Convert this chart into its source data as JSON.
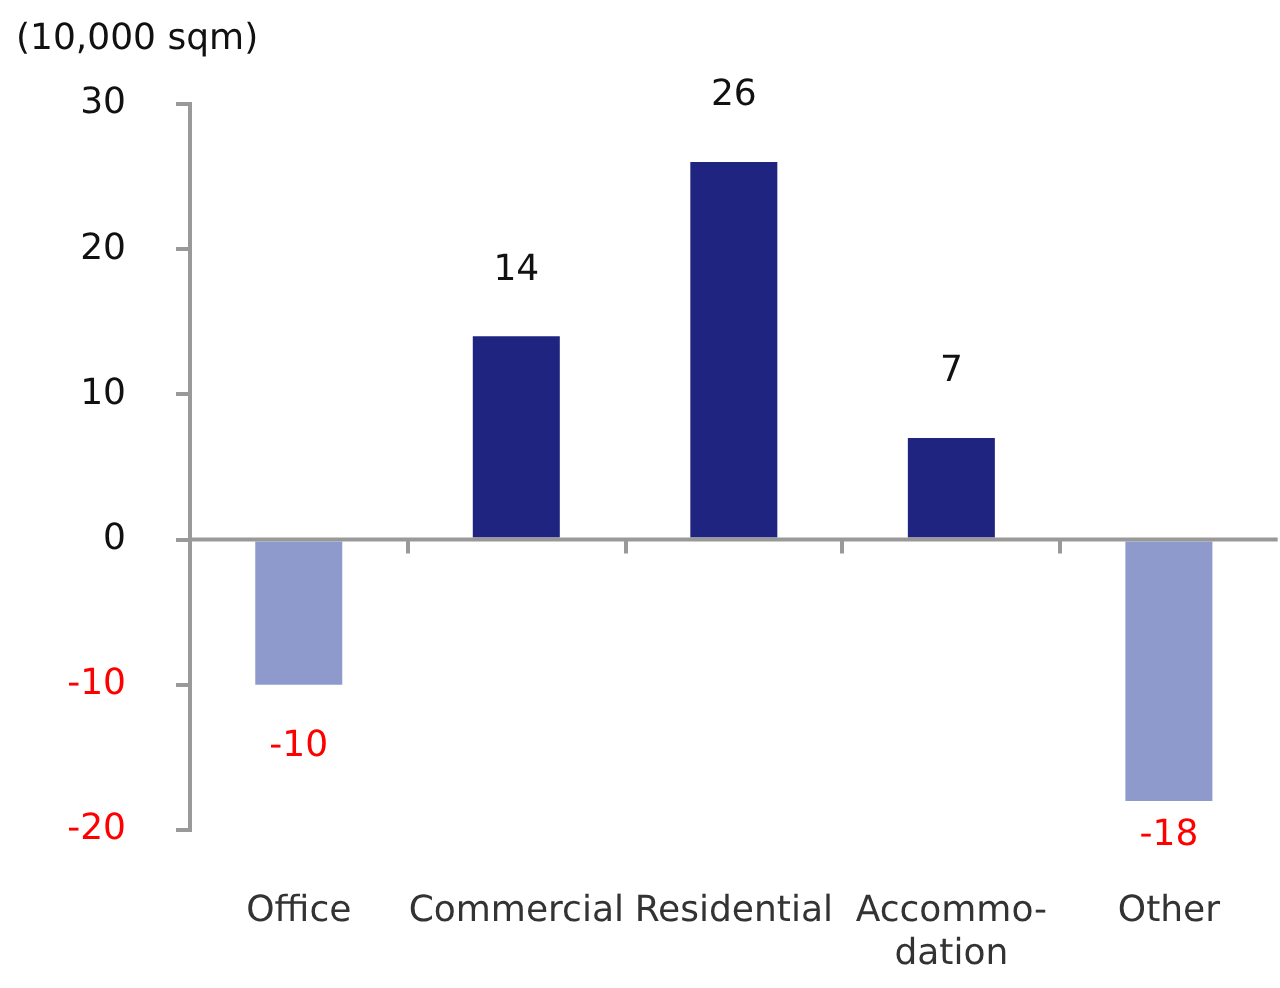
{
  "chart_data": {
    "type": "bar",
    "ylabel": "(10,000 sqm)",
    "categories": [
      "Office",
      "Commercial",
      "Residential",
      "Accommo-\ndation",
      "Other"
    ],
    "values": [
      -10,
      14,
      26,
      7,
      -18
    ],
    "colors": [
      "#8e9acb",
      "#1f2480",
      "#1f2480",
      "#1f2480",
      "#8e9acb"
    ],
    "ylim": [
      -20,
      30
    ],
    "yticks": [
      -20,
      -10,
      0,
      10,
      20,
      30
    ],
    "data_labels": true
  }
}
